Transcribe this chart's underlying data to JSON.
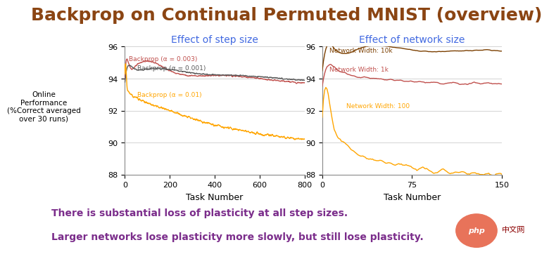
{
  "title": "Backprop on Continual Permuted MNIST (overview)",
  "title_color": "#8B4513",
  "title_fontsize": 18,
  "left_subplot_title": "Effect of step size",
  "right_subplot_title": "Effect of network size",
  "subplot_title_color": "#4169E1",
  "subplot_title_fontsize": 10,
  "ylabel_line1": "Online",
  "ylabel_line2": "Performance",
  "ylabel_line3": "(%Correct averaged",
  "ylabel_line4": "over 30 runs)",
  "xlabel": "Task Number",
  "ylim": [
    88,
    96
  ],
  "left_xlim": [
    0,
    800
  ],
  "right_xlim": [
    0,
    150
  ],
  "left_yticks": [
    88,
    90,
    92,
    94,
    96
  ],
  "right_yticks": [
    88,
    90,
    92,
    94,
    96
  ],
  "left_xticks": [
    0,
    200,
    400,
    600,
    800
  ],
  "right_xticks": [
    0,
    75,
    150
  ],
  "annotation_line1": "There is substantial loss of plasticity at all step sizes.",
  "annotation_line2": "Larger networks lose plasticity more slowly, but still lose plasticity.",
  "annotation_color": "#7B2D8B",
  "annotation_fontsize": 10,
  "background_color": "#ffffff",
  "colors": {
    "alpha003": "#C0504D",
    "alpha001": "#595959",
    "alpha01": "#FFA500",
    "width10k": "#7B3F00",
    "width1k": "#C0504D",
    "width100": "#FFA500"
  },
  "legend_labels_left": [
    "Backprop (α = 0.003)",
    "Backprop (α = 0.001)",
    "Backprop (α = 0.01)"
  ],
  "legend_labels_right": [
    "Network Width: 10k",
    "Network Width: 1k",
    "Network Width: 100"
  ],
  "php_logo_color": "#E8735A",
  "php_text_color": "#8B0000"
}
